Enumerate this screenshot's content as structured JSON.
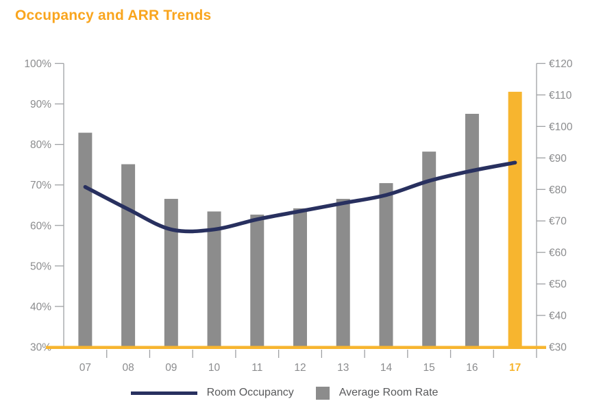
{
  "chart_data": {
    "type": "combo",
    "title": "Occupancy and ARR Trends",
    "categories": [
      "07",
      "08",
      "09",
      "10",
      "11",
      "12",
      "13",
      "14",
      "15",
      "16",
      "17"
    ],
    "series": [
      {
        "name": "Room Occupancy",
        "type": "line",
        "axis": "left",
        "unit": "%",
        "color": "#28305F",
        "values": [
          69.5,
          64,
          59,
          59,
          61.5,
          63.5,
          65.5,
          67.5,
          71,
          73.5,
          75.5
        ]
      },
      {
        "name": "Average Room Rate",
        "type": "bar",
        "axis": "right",
        "unit": "EUR",
        "color": "#8C8C8C",
        "highlight_index": 10,
        "highlight_color": "#F7B52F",
        "values": [
          98,
          88,
          77,
          73,
          72,
          74,
          77,
          82,
          92,
          104,
          111
        ]
      }
    ],
    "left_axis": {
      "min": 30,
      "max": 100,
      "tick_labels": [
        "100%",
        "90%",
        "80%",
        "70%",
        "60%",
        "50%",
        "40%",
        "30%"
      ]
    },
    "right_axis": {
      "min": 30,
      "max": 120,
      "tick_labels": [
        "€120",
        "€110",
        "€100",
        "€90",
        "€80",
        "€70",
        "€60",
        "€50",
        "€40",
        "€30"
      ]
    },
    "x_axis": {
      "labels": [
        "07",
        "08",
        "09",
        "10",
        "11",
        "12",
        "13",
        "14",
        "15",
        "16",
        "17"
      ],
      "highlighted_label": "17",
      "baseline_color": "#F7B52F"
    },
    "colors": {
      "title_orange": "#F9A51E",
      "accent_orange": "#F7B52F",
      "navy": "#28305F",
      "bar_gray": "#8C8C8C",
      "axis_line_gray": "#9EA0A3",
      "axis_text_gray": "#8B8C8E",
      "legend_text_gray": "#58595B"
    },
    "legend": {
      "position": "bottom"
    },
    "grid": false
  }
}
